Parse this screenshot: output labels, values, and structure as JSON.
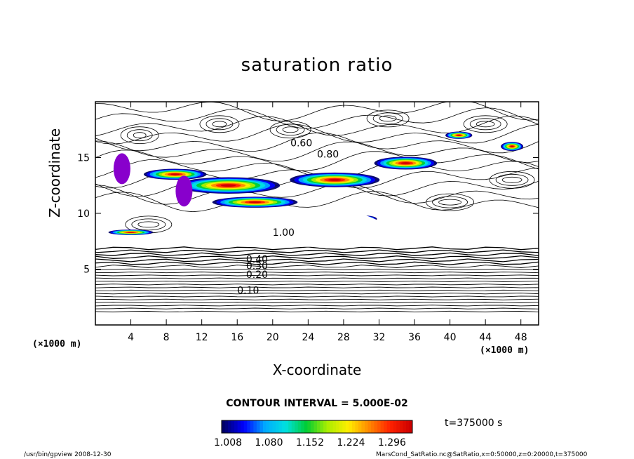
{
  "chart_data": {
    "type": "heatmap",
    "title": "saturation ratio",
    "xlabel": "X-coordinate",
    "ylabel": "Z-coordinate",
    "x_unit": "(×1000 m)",
    "y_unit": "(×1000 m)",
    "xlim": [
      0,
      50
    ],
    "ylim": [
      0,
      20
    ],
    "x_ticks": [
      "4",
      "8",
      "12",
      "16",
      "20",
      "24",
      "28",
      "32",
      "36",
      "40",
      "44",
      "48"
    ],
    "y_ticks": [
      "5",
      "10",
      "15"
    ],
    "contour_labels": [
      "0.10",
      "0.20",
      "0.30",
      "0.40",
      "0.60",
      "0.80",
      "1.00"
    ],
    "contour_interval_text": "CONTOUR INTERVAL = 5.000E-02",
    "colorbar_ticks": [
      "1.008",
      "1.080",
      "1.152",
      "1.224",
      "1.296"
    ],
    "colorbar_range": [
      1.008,
      1.296
    ],
    "time_label": "t=375000 s",
    "colors": [
      "#000066",
      "#0000ff",
      "#00aaff",
      "#00e0e0",
      "#00cc33",
      "#aaee00",
      "#ffee00",
      "#ff8800",
      "#ff2200",
      "#cc0000"
    ]
  },
  "footer": {
    "left": "/usr/bin/gpview   2008-12-30",
    "right": "MarsCond_SatRatio.nc@SatRatio,x=0:50000,z=0:20000,t=375000"
  }
}
